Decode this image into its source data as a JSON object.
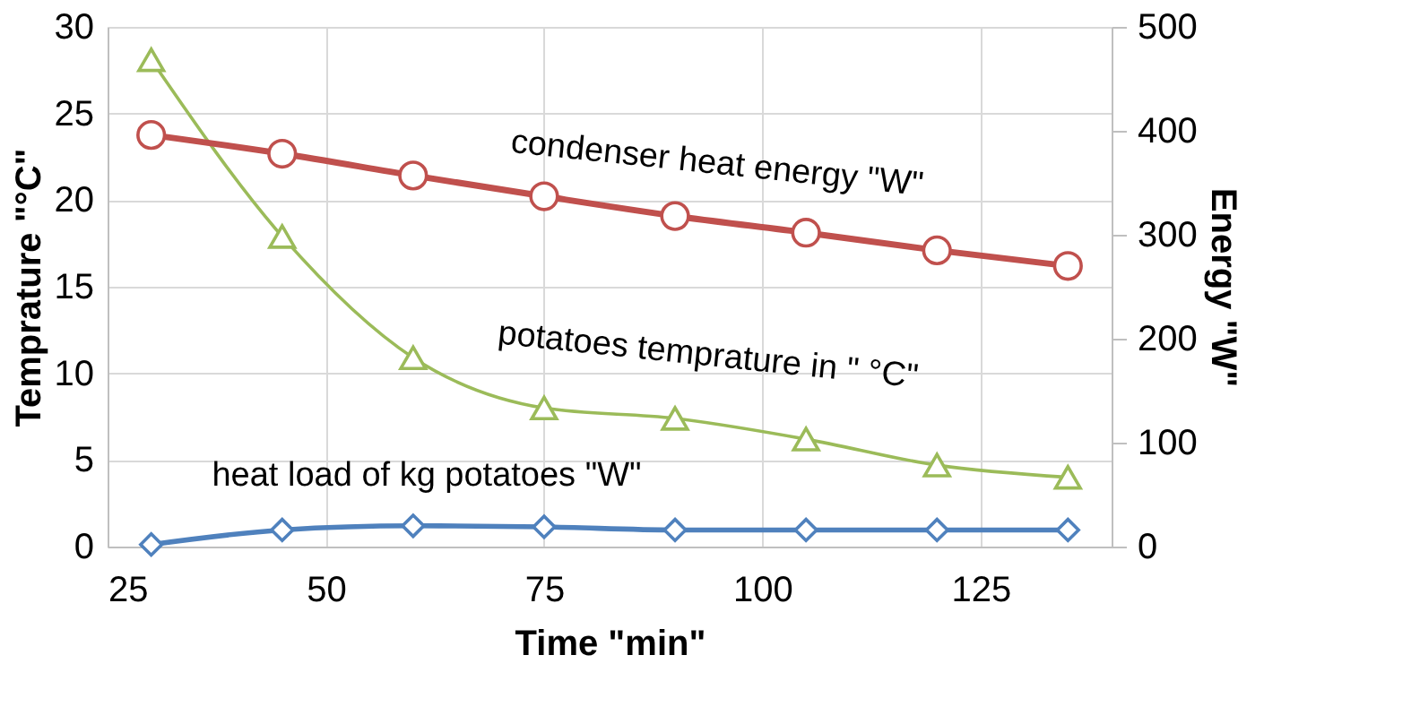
{
  "chart_data": {
    "type": "line",
    "xlabel": "Time \"min\"",
    "ylabel": "Temprature \"°C\"",
    "y2label": "Energy \"W\"",
    "x": [
      30,
      45,
      60,
      75,
      90,
      105,
      120,
      135
    ],
    "series": [
      {
        "name": "condenser heat energy \"W\"",
        "color": "#c0504d",
        "axis": "y2",
        "marker": "circle",
        "values": [
          396,
          378,
          357,
          337,
          318,
          302,
          285,
          270
        ]
      },
      {
        "name": "potatoes temprature in \" °C\"",
        "color": "#9bbb59",
        "axis": "y",
        "marker": "triangle",
        "values": [
          28.1,
          17.9,
          10.9,
          8.0,
          7.4,
          6.2,
          4.7,
          4.0
        ]
      },
      {
        "name": "heat load of kg potatoes \"W\"",
        "color": "#4f81bd",
        "axis": "y2",
        "marker": "diamond",
        "values": [
          2,
          16,
          20,
          19,
          16,
          16,
          16,
          16
        ]
      }
    ],
    "xlim": [
      25,
      140
    ],
    "xticks": [
      25,
      50,
      75,
      100,
      125
    ],
    "ylim": [
      0,
      30
    ],
    "yticks": [
      0,
      5,
      10,
      15,
      20,
      25,
      30
    ],
    "y2lim": [
      0,
      500
    ],
    "y2ticks": [
      0,
      100,
      200,
      300,
      400,
      500
    ],
    "grid": true,
    "line_style": "solid"
  }
}
